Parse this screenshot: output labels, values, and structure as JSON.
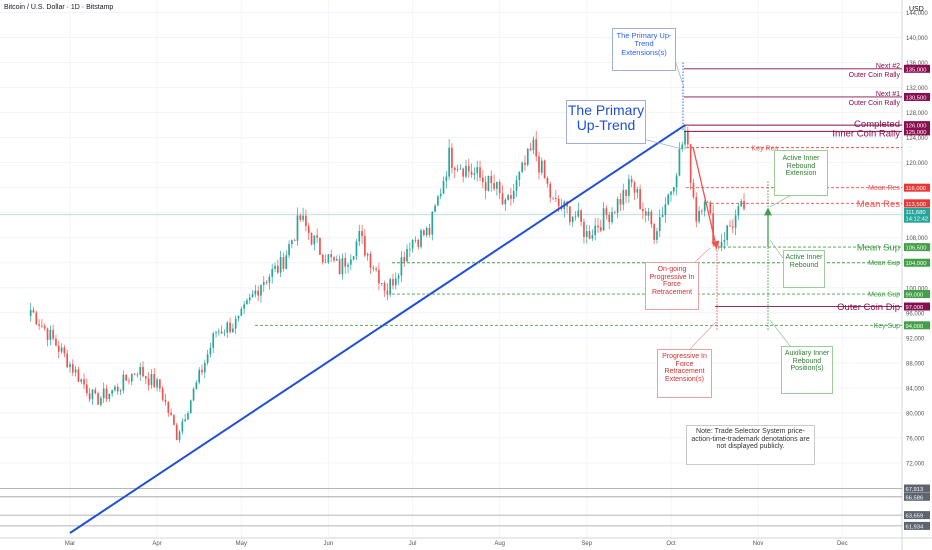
{
  "header": {
    "title": "Bitcoin / U.S. Dollar · 1D · Bitstamp",
    "currency": "USD"
  },
  "colors": {
    "up": "#26a69a",
    "down": "#ef5350",
    "trend": "#1f4fd6",
    "res": "#ef5350",
    "sup": "#43a047",
    "maroon": "#880e4f",
    "blue_text": "#2962ff"
  },
  "chart_data": {
    "type": "candlestick",
    "x_ticks": [
      "Mar",
      "Apr",
      "May",
      "Jun",
      "Jul",
      "Aug",
      "Sep",
      "Oct",
      "Nov",
      "Dec"
    ],
    "y_ticks": [
      "144,000",
      "140,000",
      "136,000",
      "132,000",
      "128,000",
      "124,000",
      "120,000",
      "116,000",
      "112,000",
      "108,000",
      "104,000",
      "100,000",
      "96,000",
      "92,000",
      "88,000",
      "84,000",
      "80,000",
      "76,000",
      "72,000"
    ],
    "y_range": [
      60000,
      146000
    ],
    "anchors": [
      [
        "2025-02-15",
        96500
      ],
      [
        "2025-02-24",
        91000
      ],
      [
        "2025-03-03",
        86500
      ],
      [
        "2025-03-10",
        82000
      ],
      [
        "2025-03-18",
        84000
      ],
      [
        "2025-03-25",
        87000
      ],
      [
        "2025-04-02",
        84000
      ],
      [
        "2025-04-08",
        76500
      ],
      [
        "2025-04-15",
        84500
      ],
      [
        "2025-04-22",
        93000
      ],
      [
        "2025-04-30",
        94500
      ],
      [
        "2025-05-08",
        101000
      ],
      [
        "2025-05-15",
        103500
      ],
      [
        "2025-05-22",
        111000
      ],
      [
        "2025-05-29",
        106000
      ],
      [
        "2025-06-05",
        103000
      ],
      [
        "2025-06-12",
        108000
      ],
      [
        "2025-06-22",
        99500
      ],
      [
        "2025-06-30",
        107500
      ],
      [
        "2025-07-07",
        109000
      ],
      [
        "2025-07-14",
        121000
      ],
      [
        "2025-07-22",
        118500
      ],
      [
        "2025-07-31",
        115500
      ],
      [
        "2025-08-03",
        112500
      ],
      [
        "2025-08-13",
        122500
      ],
      [
        "2025-08-20",
        113500
      ],
      [
        "2025-08-28",
        111500
      ],
      [
        "2025-09-01",
        108500
      ],
      [
        "2025-09-10",
        112500
      ],
      [
        "2025-09-17",
        116500
      ],
      [
        "2025-09-25",
        109000
      ],
      [
        "2025-10-01",
        116000
      ],
      [
        "2025-10-06",
        124800
      ],
      [
        "2025-10-10",
        111500
      ],
      [
        "2025-10-13",
        115000
      ],
      [
        "2025-10-17",
        106500
      ],
      [
        "2025-10-23",
        110500
      ],
      [
        "2025-10-27",
        113000
      ]
    ],
    "levels": [
      {
        "label": "Next #2 Outer Coin Rally",
        "price": 135000,
        "badge": "135,000",
        "kind": "maroon"
      },
      {
        "label": "Next #1 Outer Coin Rally",
        "price": 130500,
        "badge": "130,500",
        "kind": "maroon"
      },
      {
        "label": "Completed",
        "price": 126000,
        "badge": "126,000",
        "kind": "maroon"
      },
      {
        "label": "Inner Coin Rally",
        "price": 125000,
        "badge": "125,000",
        "kind": "maroon"
      },
      {
        "label": "Key Res",
        "price": 122400,
        "badge": "",
        "kind": "res_small"
      },
      {
        "label": "Mean Res",
        "price": 116000,
        "badge": "116,000",
        "kind": "res_small"
      },
      {
        "label": "Mean Res",
        "price": 113500,
        "badge": "113,500",
        "kind": "res_big"
      },
      {
        "label": "Mean Sup",
        "price": 106500,
        "badge": "106,500",
        "kind": "sup_big"
      },
      {
        "label": "Mean Sup",
        "price": 104000,
        "badge": "104,000",
        "kind": "sup_small"
      },
      {
        "label": "Mean Sup",
        "price": 99000,
        "badge": "99,000",
        "kind": "sup_small"
      },
      {
        "label": "Outer Coin Dip",
        "price": 97000,
        "badge": "97,000",
        "kind": "maroon"
      },
      {
        "label": "Key Sup",
        "price": 94000,
        "badge": "94,000",
        "kind": "sup_small"
      }
    ],
    "current_price": {
      "price": "111,680",
      "countdown": "14:12:42"
    },
    "lower_badges": [
      "67,913",
      "66,586",
      "63,659",
      "61,934"
    ],
    "trendline": {
      "from": [
        "2025-03-01",
        60800
      ],
      "to": [
        "2025-10-06",
        126000
      ]
    }
  },
  "annotations": {
    "extensions": "The Primary Up-Trend Extensions(s)",
    "primary_title": "The Primary Up-Trend",
    "active_ext": "Active Inner Rebound Extension",
    "active_reb": "Active Inner Rebound",
    "ongoing": "On-going Progressive In Force Retracement",
    "prog_ext": "Progressive In Force Retracement Extension(s)",
    "aux": "Auxiliary Inner Rebound Position(s)",
    "note": "Note: Trade Selector System price-action-time-trademark denotations are not displayed publicly."
  }
}
